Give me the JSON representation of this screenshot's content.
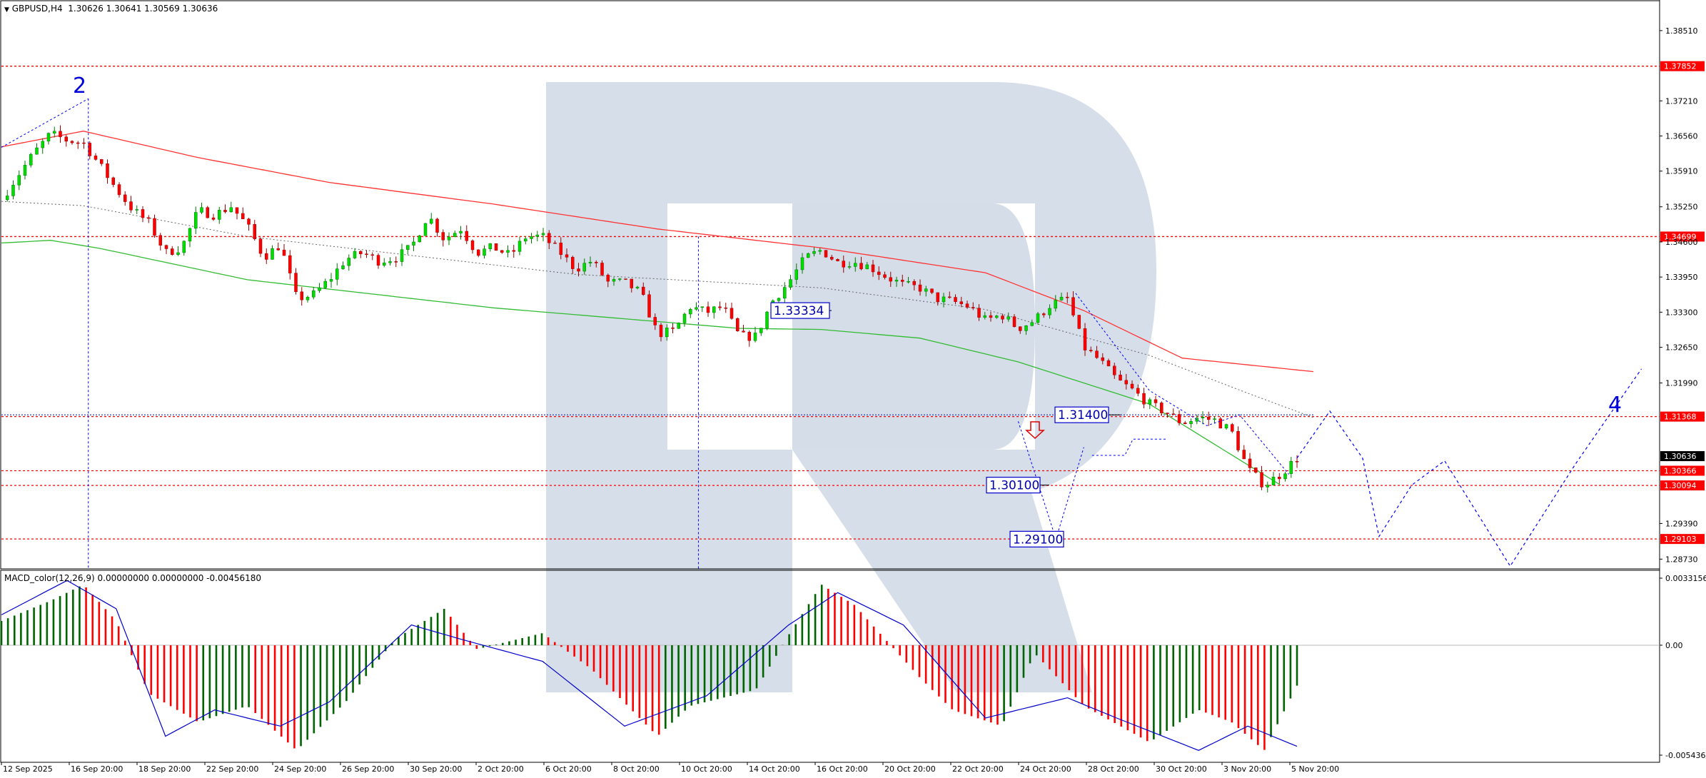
{
  "header": {
    "symbol": "GBPUSD,H4",
    "ohlc": "1.30626 1.30641 1.30569 1.30636"
  },
  "macd": {
    "title": "MACD_color(12,26,9) 0.00000000 0.00000000 -0.00456180",
    "ticks": [
      "0.0033156",
      "0.00",
      "-0.0054369"
    ]
  },
  "colors": {
    "bull": "#00dd00",
    "bear": "#ff0000",
    "macd_pos": "#006400",
    "macd_neg": "#ff0000",
    "signal": "#0000cc",
    "ma_fast": "#ff3333",
    "ma_slow": "#33bb33",
    "level": "#ff0000",
    "forecast": "#0000ff",
    "watermark": "#d4dde8"
  },
  "wave_labels": [
    "2",
    "4"
  ],
  "chart_data": [
    {
      "type": "candlestick",
      "title": "GBPUSD,H4",
      "y_ticks": [
        "1.38510",
        "1.37210",
        "1.36560",
        "1.35910",
        "1.35250",
        "1.34600",
        "1.33950",
        "1.33300",
        "1.32650",
        "1.31990",
        "1.29390",
        "1.28730"
      ],
      "x_ticks": [
        "12 Sep 2025",
        "16 Sep 20:00",
        "18 Sep 20:00",
        "22 Sep 20:00",
        "24 Sep 20:00",
        "26 Sep 20:00",
        "30 Sep 20:00",
        "2 Oct 20:00",
        "6 Oct 20:00",
        "8 Oct 20:00",
        "10 Oct 20:00",
        "14 Oct 20:00",
        "16 Oct 20:00",
        "20 Oct 20:00",
        "22 Oct 20:00",
        "24 Oct 20:00",
        "28 Oct 20:00",
        "30 Oct 20:00",
        "3 Nov 20:00",
        "5 Nov 20:00"
      ],
      "ylim": [
        1.2855,
        1.3905
      ],
      "price_path": [
        [
          0,
          1.3538
        ],
        [
          1,
          1.3583
        ],
        [
          2,
          1.3625
        ],
        [
          3,
          1.366
        ],
        [
          4,
          1.3648
        ],
        [
          5,
          1.3643
        ],
        [
          6,
          1.3602
        ],
        [
          7,
          1.3558
        ],
        [
          8,
          1.352
        ],
        [
          9,
          1.3495
        ],
        [
          10,
          1.344
        ],
        [
          11,
          1.345
        ],
        [
          12,
          1.3518
        ],
        [
          13,
          1.351
        ],
        [
          14,
          1.3526
        ],
        [
          15,
          1.349
        ],
        [
          16,
          1.3432
        ],
        [
          17,
          1.3455
        ],
        [
          18,
          1.3355
        ],
        [
          19,
          1.3362
        ],
        [
          20,
          1.339
        ],
        [
          21,
          1.3428
        ],
        [
          22,
          1.344
        ],
        [
          23,
          1.3425
        ],
        [
          24,
          1.343
        ],
        [
          25,
          1.345
        ],
        [
          26,
          1.351
        ],
        [
          27,
          1.3465
        ],
        [
          28,
          1.3485
        ],
        [
          29,
          1.344
        ],
        [
          30,
          1.345
        ],
        [
          31,
          1.3435
        ],
        [
          32,
          1.347
        ],
        [
          33,
          1.347
        ],
        [
          34,
          1.3443
        ],
        [
          35,
          1.341
        ],
        [
          36,
          1.3425
        ],
        [
          37,
          1.3385
        ],
        [
          38,
          1.3385
        ],
        [
          39,
          1.3365
        ],
        [
          40,
          1.329
        ],
        [
          41,
          1.3295
        ],
        [
          42,
          1.334
        ],
        [
          43,
          1.333
        ],
        [
          44,
          1.334
        ],
        [
          45,
          1.3285
        ],
        [
          46,
          1.3285
        ],
        [
          47,
          1.335
        ],
        [
          48,
          1.3385
        ],
        [
          49,
          1.343
        ],
        [
          50,
          1.3445
        ],
        [
          51,
          1.3422
        ],
        [
          52,
          1.3423
        ],
        [
          53,
          1.3413
        ],
        [
          54,
          1.3395
        ],
        [
          55,
          1.338
        ],
        [
          56,
          1.3375
        ],
        [
          57,
          1.3355
        ],
        [
          58,
          1.335
        ],
        [
          59,
          1.334
        ],
        [
          60,
          1.3315
        ],
        [
          61,
          1.3325
        ],
        [
          62,
          1.33
        ],
        [
          63,
          1.3315
        ],
        [
          64,
          1.3345
        ],
        [
          65,
          1.3355
        ],
        [
          66,
          1.3265
        ],
        [
          67,
          1.324
        ],
        [
          68,
          1.3205
        ],
        [
          69,
          1.3185
        ],
        [
          70,
          1.316
        ],
        [
          71,
          1.3145
        ],
        [
          72,
          1.3125
        ],
        [
          73,
          1.3135
        ],
        [
          74,
          1.313
        ],
        [
          75,
          1.311
        ],
        [
          76,
          1.304
        ],
        [
          77,
          1.301
        ],
        [
          78,
          1.303
        ],
        [
          79,
          1.306
        ]
      ],
      "lines": {
        "ma_red": [
          [
            0,
            1.3636
          ],
          [
            5,
            1.3665
          ],
          [
            12,
            1.3616
          ],
          [
            20,
            1.357
          ],
          [
            30,
            1.353
          ],
          [
            40,
            1.3484
          ],
          [
            50,
            1.3449
          ],
          [
            60,
            1.3403
          ],
          [
            66,
            1.3333
          ],
          [
            72,
            1.3245
          ],
          [
            80,
            1.322
          ]
        ],
        "ma_green": [
          [
            0,
            1.3458
          ],
          [
            3,
            1.3463
          ],
          [
            6,
            1.3448
          ],
          [
            15,
            1.339
          ],
          [
            30,
            1.3338
          ],
          [
            45,
            1.33
          ],
          [
            50,
            1.3298
          ],
          [
            56,
            1.3282
          ],
          [
            62,
            1.3238
          ],
          [
            70,
            1.316
          ],
          [
            78,
            1.301
          ]
        ],
        "ma_gray": [
          [
            0,
            1.3535
          ],
          [
            5,
            1.3527
          ],
          [
            15,
            1.347
          ],
          [
            35,
            1.34
          ],
          [
            50,
            1.3375
          ],
          [
            60,
            1.3335
          ],
          [
            70,
            1.325
          ],
          [
            76,
            1.318
          ],
          [
            80,
            1.3135
          ]
        ]
      },
      "levels": [
        "1.37852",
        "1.34699",
        "1.31368",
        "1.30366",
        "1.30094",
        "1.29103"
      ],
      "current_price": "1.30636",
      "box_labels": [
        "1.33334",
        "1.31400",
        "1.30100",
        "1.29100"
      ],
      "forecast": [
        [
          79,
          1.306
        ],
        [
          81,
          1.3147
        ],
        [
          83,
          1.306
        ],
        [
          84,
          1.2915
        ],
        [
          86,
          1.301
        ],
        [
          88,
          1.3055
        ],
        [
          92,
          1.286
        ],
        [
          96,
          1.305
        ],
        [
          100,
          1.3225
        ]
      ]
    },
    {
      "type": "bar",
      "title": "MACD_color(12,26,9)",
      "ylim": [
        -0.0054369,
        0.0033156
      ],
      "histogram": [
        [
          0,
          0.0012
        ],
        [
          3,
          0.0022
        ],
        [
          5,
          0.003
        ],
        [
          7,
          0.0012
        ],
        [
          9,
          -0.0024
        ],
        [
          12,
          -0.0038
        ],
        [
          15,
          -0.003
        ],
        [
          18,
          -0.0052
        ],
        [
          21,
          -0.0028
        ],
        [
          24,
          0.0003
        ],
        [
          27,
          0.0018
        ],
        [
          29,
          -0.0002
        ],
        [
          33,
          0.0006
        ],
        [
          36,
          -0.0012
        ],
        [
          40,
          -0.0045
        ],
        [
          42,
          -0.003
        ],
        [
          46,
          -0.0022
        ],
        [
          48,
          0.0005
        ],
        [
          50,
          0.003
        ],
        [
          52,
          0.002
        ],
        [
          56,
          -0.0016
        ],
        [
          58,
          -0.0032
        ],
        [
          61,
          -0.004
        ],
        [
          63,
          -0.0004
        ],
        [
          66,
          -0.003
        ],
        [
          70,
          -0.0048
        ],
        [
          73,
          -0.0032
        ],
        [
          75,
          -0.0038
        ],
        [
          77,
          -0.0052
        ],
        [
          79,
          -0.002
        ]
      ],
      "signal": [
        [
          0,
          0.0015
        ],
        [
          4,
          0.0032
        ],
        [
          7,
          0.0018
        ],
        [
          10,
          -0.0045
        ],
        [
          13,
          -0.0032
        ],
        [
          17,
          -0.004
        ],
        [
          20,
          -0.0028
        ],
        [
          25,
          0.001
        ],
        [
          28,
          0.0003
        ],
        [
          33,
          -0.0008
        ],
        [
          38,
          -0.004
        ],
        [
          43,
          -0.0025
        ],
        [
          48,
          0.001
        ],
        [
          51,
          0.0026
        ],
        [
          55,
          0.001
        ],
        [
          60,
          -0.0036
        ],
        [
          65,
          -0.0026
        ],
        [
          68,
          -0.0036
        ],
        [
          73,
          -0.0052
        ],
        [
          76,
          -0.004
        ],
        [
          79,
          -0.005
        ]
      ]
    }
  ]
}
